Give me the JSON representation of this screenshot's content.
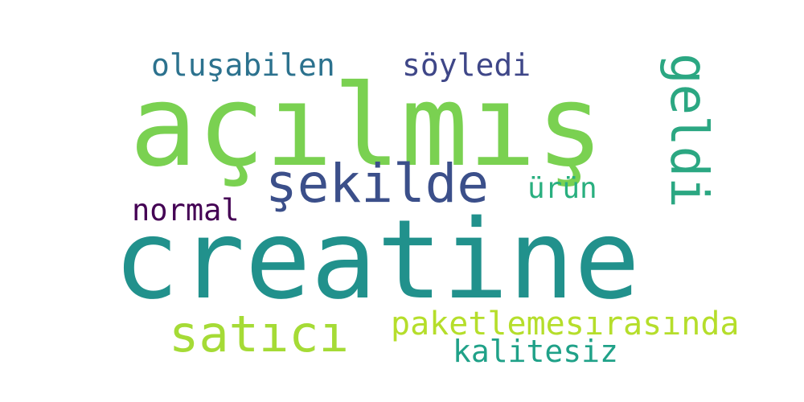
{
  "words": {
    "acilmis": {
      "text": "açılmış",
      "color": "#7AD151"
    },
    "creatine": {
      "text": "creatine",
      "color": "#21918C"
    },
    "sekilde": {
      "text": "şekilde",
      "color": "#3B4F8A"
    },
    "geldi": {
      "text": "geldi",
      "color": "#2BA782"
    },
    "satici": {
      "text": "satıcı",
      "color": "#A5DB36"
    },
    "olusabilen": {
      "text": "oluşabilen",
      "color": "#2C728E"
    },
    "soyledi": {
      "text": "söyledi",
      "color": "#3F4788"
    },
    "paketleme": {
      "text": "paketlemesırasında",
      "color": "#B5DE2B"
    },
    "kalitesiz": {
      "text": "kalitesiz",
      "color": "#1FA188"
    },
    "normal": {
      "text": "normal",
      "color": "#440154"
    },
    "urun": {
      "text": "ürün",
      "color": "#29AF7F"
    }
  }
}
